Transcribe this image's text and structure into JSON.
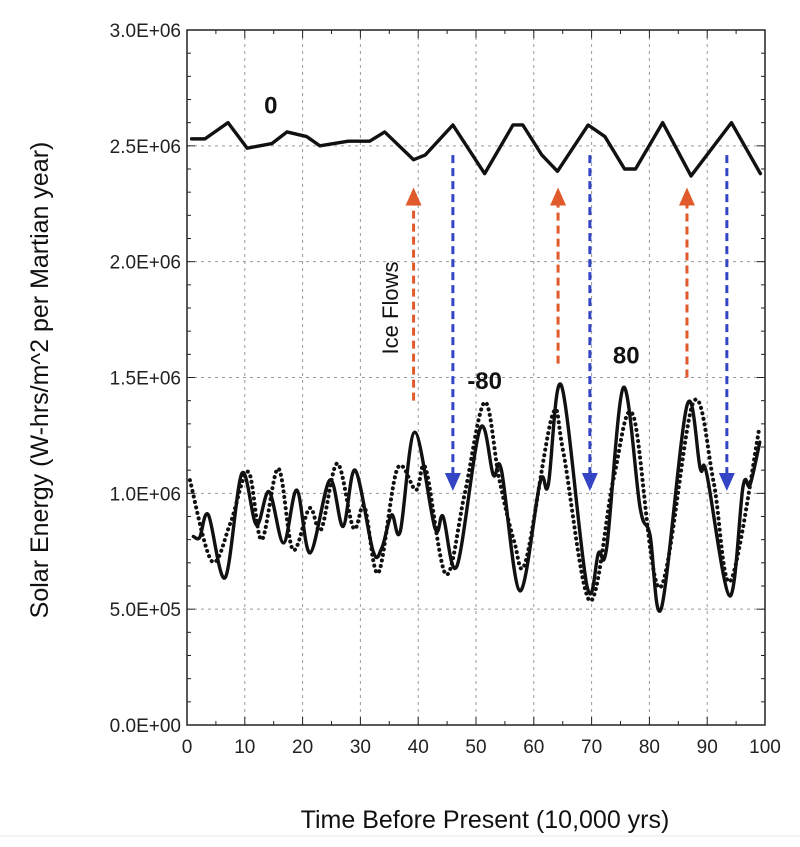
{
  "chart_data": {
    "type": "line",
    "title": "",
    "xlabel": "Time Before Present (10,000 yrs)",
    "ylabel": "Solar Energy (W-hrs/m^2 per Martian year)",
    "xlim": [
      0,
      100
    ],
    "ylim": [
      0,
      3000000
    ],
    "x_ticks": [
      "0",
      "10",
      "20",
      "30",
      "40",
      "50",
      "60",
      "70",
      "80",
      "90",
      "100"
    ],
    "y_ticks": [
      "0.0E+00",
      "5.0E+05",
      "1.0E+06",
      "1.5E+06",
      "2.0E+06",
      "2.5E+06",
      "3.0E+06"
    ],
    "grid": true,
    "series": [
      {
        "label": "0",
        "style": "solid",
        "x": [
          0.8,
          3.1,
          7.1,
          10.4,
          14.7,
          17.3,
          20.7,
          23,
          27.9,
          31.6,
          34.2,
          39.2,
          41.2,
          46,
          51.5,
          56.4,
          58.1,
          61.4,
          64.1,
          69.4,
          72.3,
          75.7,
          77.6,
          82.3,
          87.2,
          94.2,
          99.2
        ],
        "y": [
          2530000,
          2530000,
          2600000,
          2490000,
          2510000,
          2560000,
          2540000,
          2500000,
          2520000,
          2520000,
          2560000,
          2440000,
          2460000,
          2590000,
          2380000,
          2590000,
          2590000,
          2460000,
          2390000,
          2590000,
          2540000,
          2400000,
          2400000,
          2600000,
          2370000,
          2600000,
          2380000
        ]
      },
      {
        "label": "80",
        "style": "solid",
        "x": [
          1.1,
          2.2,
          3.7,
          6.6,
          9.5,
          12,
          14.2,
          16.7,
          19,
          21.3,
          24.7,
          27,
          29.1,
          32.2,
          33.7,
          35.4,
          36.9,
          39.4,
          42.9,
          44.3,
          46.7,
          50.7,
          53,
          54.4,
          57.6,
          61.1,
          62.5,
          64.8,
          69.2,
          71.2,
          72.6,
          75.5,
          78.4,
          80.1,
          82.1,
          86.5,
          88.8,
          89.9,
          93.9,
          96.2,
          97.4,
          99.1
        ],
        "y": [
          814000,
          810000,
          907000,
          636000,
          1086000,
          864000,
          1007000,
          786000,
          1014000,
          743000,
          1057000,
          857000,
          1100000,
          750000,
          764000,
          907000,
          836000,
          1264000,
          850000,
          900000,
          686000,
          1279000,
          1079000,
          1100000,
          579000,
          1050000,
          1036000,
          1464000,
          600000,
          743000,
          764000,
          1457000,
          936000,
          821000,
          507000,
          1379000,
          1107000,
          1086000,
          557000,
          1029000,
          1036000,
          1221000
        ]
      },
      {
        "label": "-80",
        "style": "dotted",
        "x": [
          0.5,
          4.3,
          7.5,
          10.6,
          12.9,
          15.8,
          18.3,
          21.2,
          23.2,
          26,
          28.8,
          30.7,
          33.1,
          36.4,
          39.6,
          41.3,
          44.8,
          48,
          51.5,
          54,
          56.6,
          58.6,
          63.2,
          65.1,
          69.7,
          73.8,
          77.2,
          81.8,
          87.6,
          91.1,
          94,
          99
        ],
        "y": [
          1057000,
          707000,
          871000,
          1093000,
          800000,
          1107000,
          757000,
          936000,
          843000,
          1129000,
          850000,
          943000,
          657000,
          1107000,
          1014000,
          1107000,
          650000,
          993000,
          1393000,
          1064000,
          793000,
          707000,
          1336000,
          1179000,
          536000,
          1064000,
          1336000,
          593000,
          1393000,
          1050000,
          621000,
          1279000
        ]
      }
    ],
    "curve_labels": [
      {
        "text": "0",
        "x": 14.5,
        "y": 2640000
      },
      {
        "text": "-80",
        "x": 51.5,
        "y": 1450000
      },
      {
        "text": "80",
        "x": 76,
        "y": 1560000
      }
    ],
    "annotations": {
      "text": "Ice Flows",
      "text_x": 36.5,
      "text_y": 1800000,
      "up_arrows": [
        {
          "x": 39.2,
          "y_from": 1400000,
          "y_to": 2320000
        },
        {
          "x": 64.2,
          "y_from": 1560000,
          "y_to": 2320000
        },
        {
          "x": 86.5,
          "y_from": 1500000,
          "y_to": 2320000
        }
      ],
      "down_arrows": [
        {
          "x": 46,
          "y_from": 2460000,
          "y_to": 1010000
        },
        {
          "x": 69.7,
          "y_from": 2460000,
          "y_to": 1010000
        },
        {
          "x": 93.4,
          "y_from": 2460000,
          "y_to": 1010000
        }
      ],
      "up_color": "#e05a2b",
      "down_color": "#3344c4"
    }
  }
}
